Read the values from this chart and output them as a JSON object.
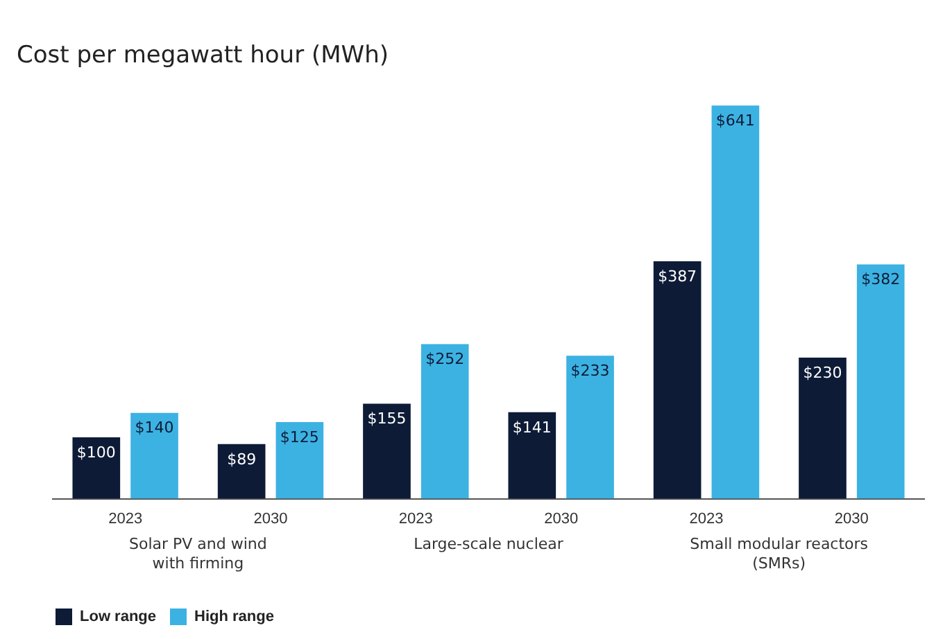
{
  "chart_data": {
    "type": "bar",
    "ylabel": "Cost per megawatt hour (MWh)",
    "categories": [
      "2023",
      "2030",
      "2023",
      "2030",
      "2023",
      "2030"
    ],
    "series": [
      {
        "name": "Low range",
        "color": "#0d1b36",
        "values": [
          100,
          89,
          155,
          141,
          387,
          230
        ],
        "value_labels": [
          "$100",
          "$89",
          "$155",
          "$141",
          "$387",
          "$230"
        ]
      },
      {
        "name": "High range",
        "color": "#3cb2e2",
        "values": [
          140,
          125,
          252,
          233,
          641,
          382
        ],
        "value_labels": [
          "$140",
          "$125",
          "$252",
          "$233",
          "$641",
          "$382"
        ]
      }
    ],
    "annotations": [
      "Solar PV and wind\nwith firming",
      "Large-scale nuclear",
      "Small modular reactors\n(SMRs)"
    ],
    "relative": false,
    "grid": false,
    "legend": "bottom left"
  }
}
